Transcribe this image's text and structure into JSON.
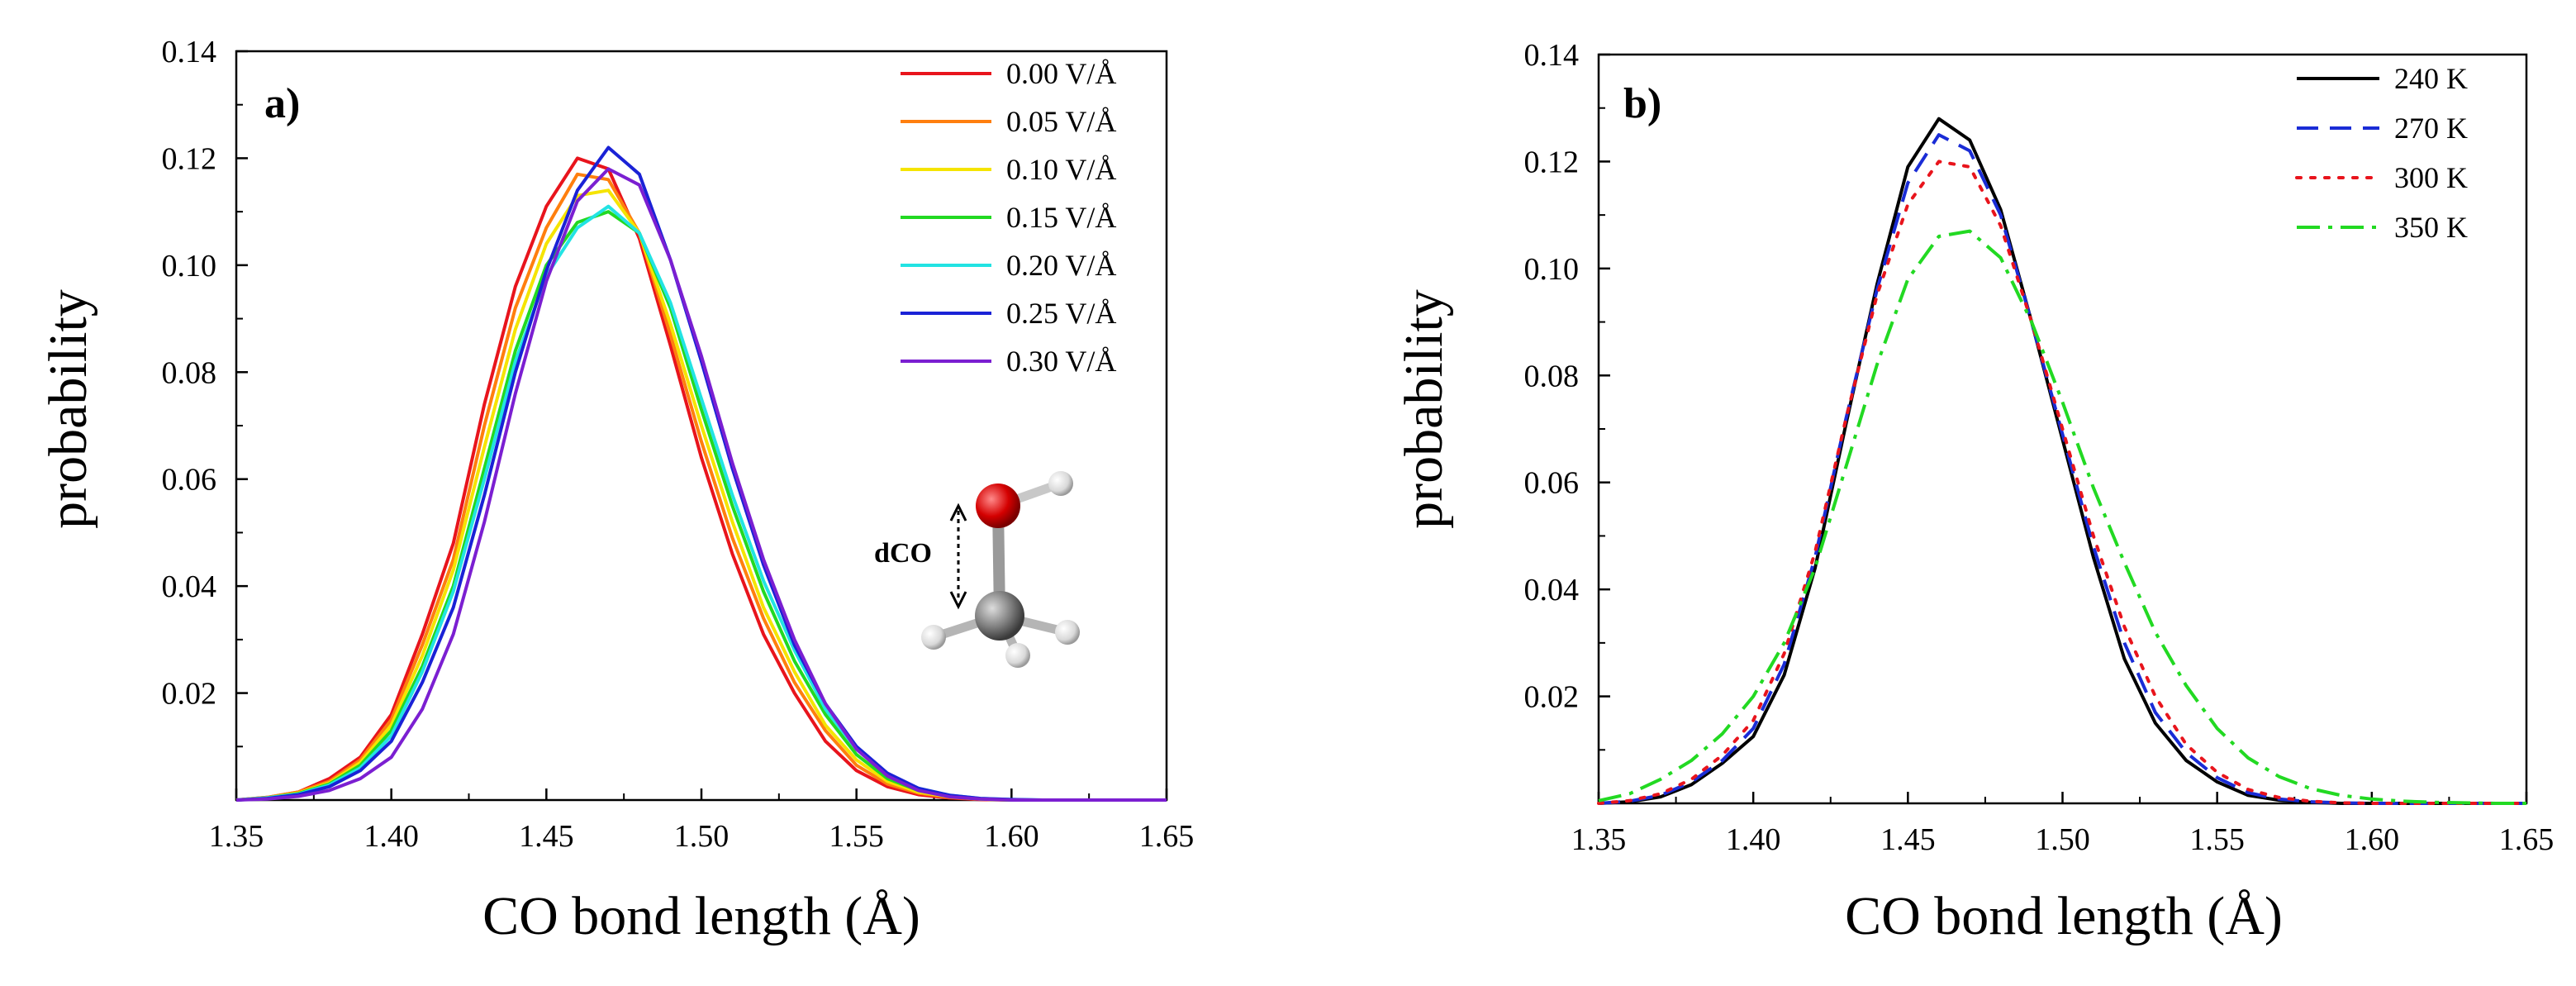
{
  "chart_data": [
    {
      "type": "line",
      "panel_label": "a)",
      "xlabel": "CO bond length (Å)",
      "ylabel": "probability",
      "xlim": [
        1.35,
        1.65
      ],
      "ylim": [
        0,
        0.14
      ],
      "xticks": [
        "1.35",
        "1.40",
        "1.45",
        "1.50",
        "1.55",
        "1.60",
        "1.65"
      ],
      "yticks": [
        "0.02",
        "0.04",
        "0.06",
        "0.08",
        "0.10",
        "0.12",
        "0.14"
      ],
      "legend_position": "top-right",
      "inset_label": "dCO",
      "x": [
        1.35,
        1.36,
        1.37,
        1.38,
        1.39,
        1.4,
        1.41,
        1.42,
        1.43,
        1.44,
        1.45,
        1.46,
        1.47,
        1.48,
        1.49,
        1.5,
        1.51,
        1.52,
        1.53,
        1.54,
        1.55,
        1.56,
        1.57,
        1.58,
        1.59,
        1.6,
        1.61,
        1.62,
        1.63,
        1.64,
        1.65
      ],
      "series": [
        {
          "name": "0.00 V/Å",
          "color": "#e8141c",
          "dash": "solid",
          "values": [
            0.0,
            0.0005,
            0.0015,
            0.004,
            0.008,
            0.016,
            0.031,
            0.048,
            0.074,
            0.096,
            0.111,
            0.12,
            0.118,
            0.105,
            0.085,
            0.064,
            0.046,
            0.031,
            0.02,
            0.011,
            0.0055,
            0.0025,
            0.001,
            0.0004,
            0.0001,
            0.0,
            0.0,
            0.0,
            0.0,
            0.0,
            0.0
          ]
        },
        {
          "name": "0.05 V/Å",
          "color": "#ff7f0e",
          "dash": "solid",
          "values": [
            0.0,
            0.0005,
            0.0015,
            0.0035,
            0.0075,
            0.015,
            0.029,
            0.045,
            0.07,
            0.092,
            0.107,
            0.117,
            0.116,
            0.106,
            0.087,
            0.067,
            0.049,
            0.034,
            0.022,
            0.013,
            0.0065,
            0.003,
            0.0013,
            0.0005,
            0.0002,
            0.0,
            0.0,
            0.0,
            0.0,
            0.0,
            0.0
          ]
        },
        {
          "name": "0.10 V/Å",
          "color": "#f5e400",
          "dash": "solid",
          "values": [
            0.0,
            0.0004,
            0.0013,
            0.0032,
            0.007,
            0.014,
            0.027,
            0.043,
            0.066,
            0.088,
            0.104,
            0.113,
            0.114,
            0.106,
            0.089,
            0.07,
            0.052,
            0.036,
            0.024,
            0.014,
            0.0075,
            0.0035,
            0.0015,
            0.0006,
            0.0002,
            0.0,
            0.0,
            0.0,
            0.0,
            0.0,
            0.0
          ]
        },
        {
          "name": "0.15 V/Å",
          "color": "#22d922",
          "dash": "solid",
          "values": [
            0.0,
            0.0004,
            0.0012,
            0.003,
            0.0065,
            0.013,
            0.025,
            0.04,
            0.062,
            0.084,
            0.1,
            0.108,
            0.11,
            0.106,
            0.092,
            0.073,
            0.055,
            0.039,
            0.026,
            0.016,
            0.0085,
            0.004,
            0.0018,
            0.0007,
            0.0002,
            0.0,
            0.0,
            0.0,
            0.0,
            0.0,
            0.0
          ]
        },
        {
          "name": "0.20 V/Å",
          "color": "#22e3e3",
          "dash": "solid",
          "values": [
            0.0,
            0.0004,
            0.0011,
            0.0028,
            0.006,
            0.012,
            0.024,
            0.039,
            0.06,
            0.082,
            0.098,
            0.107,
            0.111,
            0.106,
            0.093,
            0.075,
            0.057,
            0.041,
            0.028,
            0.017,
            0.0095,
            0.0048,
            0.0022,
            0.0009,
            0.0003,
            0.0001,
            0.0,
            0.0,
            0.0,
            0.0,
            0.0
          ]
        },
        {
          "name": "0.25 V/Å",
          "color": "#1a22d6",
          "dash": "solid",
          "values": [
            0.0,
            0.0003,
            0.001,
            0.0025,
            0.0055,
            0.011,
            0.022,
            0.036,
            0.057,
            0.08,
            0.099,
            0.114,
            0.122,
            0.117,
            0.101,
            0.082,
            0.062,
            0.044,
            0.029,
            0.018,
            0.01,
            0.005,
            0.0022,
            0.0009,
            0.0003,
            0.0001,
            0.0,
            0.0,
            0.0,
            0.0,
            0.0
          ]
        },
        {
          "name": "0.30 V/Å",
          "color": "#7b1fd1",
          "dash": "solid",
          "values": [
            0.0,
            0.0002,
            0.0007,
            0.0018,
            0.004,
            0.008,
            0.017,
            0.031,
            0.052,
            0.076,
            0.097,
            0.112,
            0.118,
            0.115,
            0.101,
            0.083,
            0.063,
            0.045,
            0.03,
            0.018,
            0.0095,
            0.0045,
            0.0018,
            0.0006,
            0.0002,
            0.0,
            0.0,
            0.0,
            0.0,
            0.0,
            0.0
          ]
        }
      ]
    },
    {
      "type": "line",
      "panel_label": "b)",
      "xlabel": "CO bond length (Å)",
      "ylabel": "probability",
      "xlim": [
        1.35,
        1.65
      ],
      "ylim": [
        0,
        0.14
      ],
      "xticks": [
        "1.35",
        "1.40",
        "1.45",
        "1.50",
        "1.55",
        "1.60",
        "1.65"
      ],
      "yticks": [
        "0.02",
        "0.04",
        "0.06",
        "0.08",
        "0.10",
        "0.12",
        "0.14"
      ],
      "legend_position": "top-right",
      "x": [
        1.35,
        1.36,
        1.37,
        1.38,
        1.39,
        1.4,
        1.41,
        1.42,
        1.43,
        1.44,
        1.45,
        1.46,
        1.47,
        1.48,
        1.49,
        1.5,
        1.51,
        1.52,
        1.53,
        1.54,
        1.55,
        1.56,
        1.57,
        1.58,
        1.59,
        1.6,
        1.61,
        1.62,
        1.63,
        1.64,
        1.65
      ],
      "series": [
        {
          "name": "240 K",
          "color": "#000000",
          "dash": "solid",
          "values": [
            0.0,
            0.0003,
            0.0012,
            0.0035,
            0.0075,
            0.0125,
            0.024,
            0.044,
            0.071,
            0.097,
            0.119,
            0.128,
            0.124,
            0.111,
            0.09,
            0.068,
            0.046,
            0.027,
            0.015,
            0.008,
            0.004,
            0.0015,
            0.0006,
            0.0002,
            0.0,
            0.0,
            0.0,
            0.0,
            0.0,
            0.0,
            0.0
          ]
        },
        {
          "name": "270 K",
          "color": "#1a2cd6",
          "dash": "dashed",
          "values": [
            0.0,
            0.0004,
            0.0015,
            0.004,
            0.008,
            0.014,
            0.026,
            0.046,
            0.072,
            0.096,
            0.116,
            0.125,
            0.122,
            0.11,
            0.09,
            0.069,
            0.048,
            0.03,
            0.017,
            0.0095,
            0.0048,
            0.002,
            0.0008,
            0.0003,
            0.0001,
            0.0,
            0.0,
            0.0,
            0.0,
            0.0,
            0.0
          ]
        },
        {
          "name": "300 K",
          "color": "#e8141c",
          "dash": "dotted",
          "values": [
            0.0,
            0.0005,
            0.0018,
            0.0045,
            0.009,
            0.0155,
            0.028,
            0.047,
            0.072,
            0.095,
            0.112,
            0.12,
            0.119,
            0.108,
            0.09,
            0.07,
            0.05,
            0.033,
            0.02,
            0.011,
            0.0058,
            0.0026,
            0.0011,
            0.0004,
            0.0001,
            0.0,
            0.0,
            0.0,
            0.0,
            0.0,
            0.0
          ]
        },
        {
          "name": "350 K",
          "color": "#22d922",
          "dash": "dashdot",
          "values": [
            0.0005,
            0.0018,
            0.0045,
            0.008,
            0.013,
            0.02,
            0.03,
            0.044,
            0.063,
            0.082,
            0.098,
            0.106,
            0.107,
            0.102,
            0.09,
            0.075,
            0.059,
            0.045,
            0.032,
            0.022,
            0.014,
            0.0085,
            0.005,
            0.0028,
            0.0015,
            0.0008,
            0.0004,
            0.0002,
            0.0001,
            0.0,
            0.0
          ]
        }
      ]
    }
  ]
}
